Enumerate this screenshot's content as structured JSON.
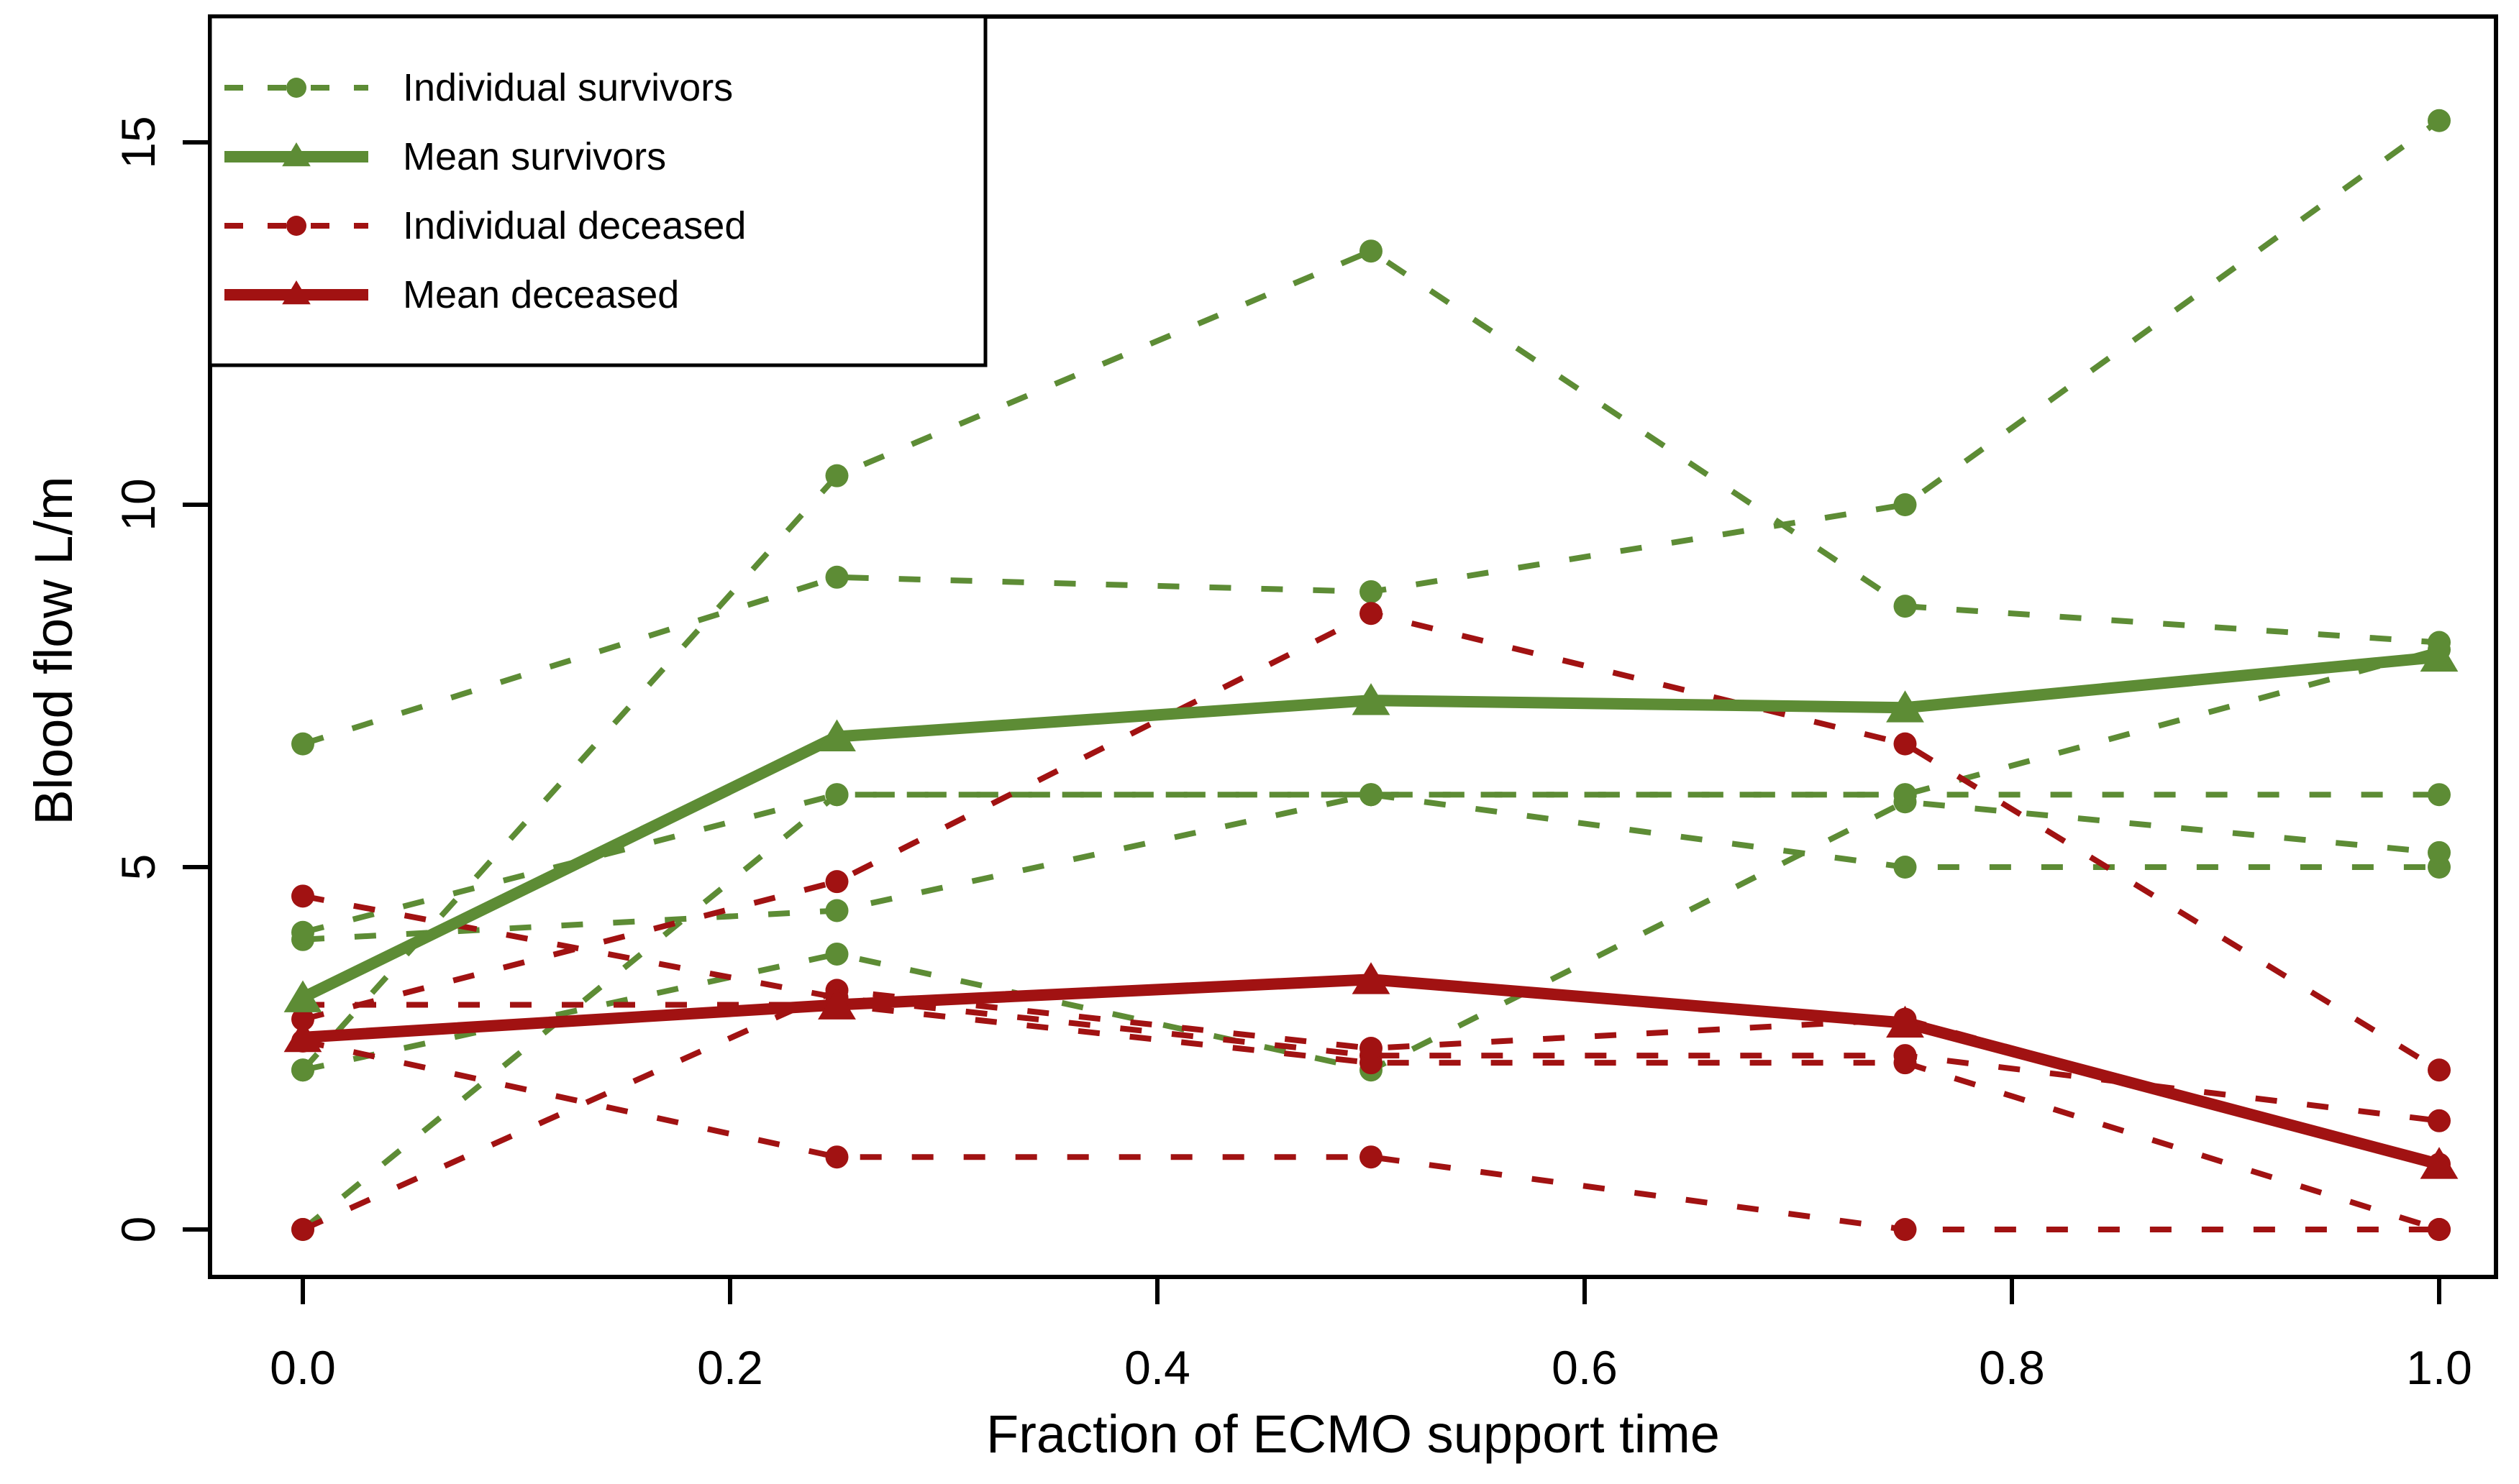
{
  "chart_data": {
    "type": "line",
    "title": "",
    "xlabel": "Fraction of ECMO support time",
    "ylabel": "Blood flow L/m",
    "x": [
      0,
      0.25,
      0.5,
      0.75,
      1.0
    ],
    "xlim": [
      -0.045,
      1.04
    ],
    "ylim": [
      -0.65,
      16.7
    ],
    "grid": false,
    "x_ticks": {
      "values": [
        0.0,
        0.2,
        0.4,
        0.6,
        0.8,
        1.0
      ],
      "labels": [
        "0.0",
        "0.2",
        "0.4",
        "0.6",
        "0.8",
        "1.0"
      ]
    },
    "y_ticks": {
      "values": [
        0,
        5,
        10,
        15
      ],
      "labels": [
        "0",
        "5",
        "10",
        "15"
      ]
    },
    "colors": {
      "survivors": "#5d8c35",
      "deceased": "#a11212",
      "axis": "#000000"
    },
    "series": [
      {
        "name": "Individual survivor 1",
        "group": "survivors",
        "role": "individual",
        "color": "#5d8c35",
        "style": "dashed",
        "marker": "circle",
        "values": [
          6.7,
          9.0,
          8.8,
          10.0,
          15.3
        ]
      },
      {
        "name": "Individual survivor 2",
        "group": "survivors",
        "role": "individual",
        "color": "#5d8c35",
        "style": "dashed",
        "marker": "circle",
        "values": [
          4.0,
          4.4,
          6.0,
          6.0,
          6.0
        ]
      },
      {
        "name": "Individual survivor 3",
        "group": "survivors",
        "role": "individual",
        "color": "#5d8c35",
        "style": "dashed",
        "marker": "circle",
        "values": [
          4.1,
          6.0,
          6.0,
          5.0,
          5.0
        ]
      },
      {
        "name": "Individual survivor 4",
        "group": "survivors",
        "role": "individual",
        "color": "#5d8c35",
        "style": "dashed",
        "marker": "circle",
        "values": [
          2.2,
          10.4,
          13.5,
          8.6,
          8.1
        ]
      },
      {
        "name": "Individual survivor 5",
        "group": "survivors",
        "role": "individual",
        "color": "#5d8c35",
        "style": "dashed",
        "marker": "circle",
        "values": [
          2.2,
          3.8,
          2.2,
          5.9,
          5.2
        ]
      },
      {
        "name": "Individual survivor 6",
        "group": "survivors",
        "role": "individual",
        "color": "#5d8c35",
        "style": "dashed",
        "marker": "circle",
        "values": [
          0.0,
          6.0,
          6.0,
          6.0,
          8.0
        ]
      },
      {
        "name": "Mean survivors",
        "group": "survivors",
        "role": "mean",
        "color": "#5d8c35",
        "style": "solid-thick",
        "marker": "triangle",
        "values": [
          3.2,
          6.8,
          7.3,
          7.2,
          7.9
        ]
      },
      {
        "name": "Individual deceased 1",
        "group": "deceased",
        "role": "individual",
        "color": "#a11212",
        "style": "dashed",
        "marker": "circle",
        "values": [
          4.6,
          3.2,
          2.4,
          2.4,
          1.5
        ]
      },
      {
        "name": "Individual deceased 2",
        "group": "deceased",
        "role": "individual",
        "color": "#a11212",
        "style": "dashed",
        "marker": "circle",
        "values": [
          3.1,
          3.1,
          2.3,
          2.3,
          0.0
        ]
      },
      {
        "name": "Individual deceased 3",
        "group": "deceased",
        "role": "individual",
        "color": "#a11212",
        "style": "dashed",
        "marker": "circle",
        "values": [
          2.9,
          4.8,
          8.5,
          6.7,
          2.2
        ]
      },
      {
        "name": "Individual deceased 4",
        "group": "deceased",
        "role": "individual",
        "color": "#a11212",
        "style": "dashed",
        "marker": "circle",
        "values": [
          2.6,
          1.0,
          1.0,
          0.0,
          0.0
        ]
      },
      {
        "name": "Individual deceased 5",
        "group": "deceased",
        "role": "individual",
        "color": "#a11212",
        "style": "dashed",
        "marker": "circle",
        "values": [
          0.0,
          3.3,
          2.5,
          2.9,
          0.9
        ]
      },
      {
        "name": "Mean deceased",
        "group": "deceased",
        "role": "mean",
        "color": "#a11212",
        "style": "solid-thick",
        "marker": "triangle",
        "values": [
          2.65,
          3.1,
          3.45,
          2.85,
          0.9
        ]
      }
    ],
    "legend": {
      "position": "top-left",
      "items": [
        {
          "label": "Individual survivors",
          "color": "#5d8c35",
          "style": "dashed",
          "marker": "circle"
        },
        {
          "label": "Mean survivors",
          "color": "#5d8c35",
          "style": "solid-thick",
          "marker": "triangle"
        },
        {
          "label": "Individual deceased",
          "color": "#a11212",
          "style": "dashed",
          "marker": "circle"
        },
        {
          "label": "Mean deceased",
          "color": "#a11212",
          "style": "solid-thick",
          "marker": "triangle"
        }
      ]
    }
  }
}
